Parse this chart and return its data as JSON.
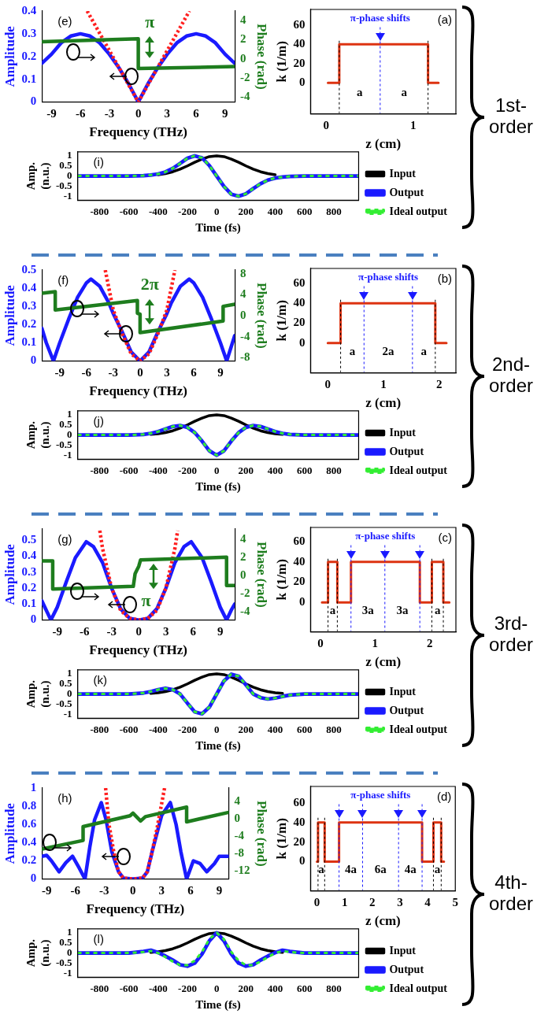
{
  "chart_data": [
    {
      "type": "line",
      "title": "(e)",
      "xlabel": "Frequency (THz)",
      "ylabel": "Amplitude",
      "y2label": "Phase (rad)",
      "xlim": [
        -10,
        10
      ],
      "xticks": [
        -9,
        -6,
        -3,
        0,
        3,
        6,
        9
      ],
      "ylim": [
        0,
        0.4
      ],
      "yticks": [
        0,
        0.1,
        0.2,
        0.3,
        0.4
      ],
      "y2lim": [
        -4.5,
        5
      ],
      "y2ticks": [
        -4,
        -2,
        0,
        2,
        4
      ],
      "annotations": [
        "π"
      ],
      "series": [
        {
          "color": "#1a1aff",
          "x": [
            -10,
            -9,
            -8,
            -7,
            -6,
            -5,
            -4,
            -3,
            -2,
            -1,
            0,
            1,
            2,
            3,
            4,
            5,
            6,
            7,
            8,
            9,
            10
          ],
          "values": [
            0.17,
            0.21,
            0.26,
            0.29,
            0.3,
            0.29,
            0.26,
            0.21,
            0.15,
            0.08,
            0,
            0.08,
            0.15,
            0.21,
            0.26,
            0.29,
            0.3,
            0.29,
            0.26,
            0.21,
            0.17
          ]
        },
        {
          "color": "#ff2020",
          "line_style": "dotted",
          "x": [
            -5.3,
            0,
            5.3
          ],
          "values": [
            0.4,
            0,
            0.4
          ]
        },
        {
          "color": "#1e7d1e",
          "axis": "y2",
          "x": [
            -10,
            0,
            0,
            10
          ],
          "values": [
            1.8,
            2.1,
            -1.0,
            -0.8
          ]
        }
      ]
    },
    {
      "type": "line",
      "title": "(a)",
      "xlabel": "z (cm)",
      "ylabel": "k (1/m)",
      "xlim": [
        -0.18,
        1.49
      ],
      "xticks": [
        0,
        1
      ],
      "ylim": [
        -32,
        76
      ],
      "yticks": [
        0,
        20,
        40,
        60
      ],
      "annotations": [
        "π-phase shifts",
        "a",
        "a",
        "1st-order"
      ],
      "ref_lines": [
        {
          "axis": "x",
          "value": 0.15,
          "line_style": "dotted"
        },
        {
          "axis": "x",
          "value": 0.62,
          "color": "#1a1aff",
          "line_style": "dotted"
        },
        {
          "axis": "x",
          "value": 1.17,
          "line_style": "dotted"
        }
      ],
      "series": [
        {
          "color": "#dd3311",
          "x": [
            0.02,
            0.15,
            0.15,
            1.17,
            1.17,
            1.29
          ],
          "values": [
            0,
            0,
            40,
            40,
            0,
            0
          ]
        }
      ]
    },
    {
      "type": "line",
      "title": "(i)",
      "xlabel": "Time (fs)",
      "ylabel": "Amp. (n.u.)",
      "xlim": [
        -950,
        970
      ],
      "xticks": [
        -800,
        -600,
        -400,
        -200,
        0,
        200,
        400,
        600,
        800
      ],
      "ylim": [
        -1.2,
        1.2
      ],
      "yticks": [
        -1,
        -0.5,
        0,
        0.5,
        1
      ],
      "legend": "right",
      "x": [
        -950,
        -600,
        -500,
        -450,
        -400,
        -350,
        -300,
        -250,
        -200,
        -150,
        -100,
        -50,
        0,
        50,
        100,
        150,
        200,
        250,
        300,
        350,
        400,
        450,
        500,
        600,
        970
      ],
      "series": [
        {
          "name": "Input",
          "color": "#000000",
          "values": [
            null,
            null,
            null,
            null,
            0.06,
            0.12,
            0.21,
            0.34,
            0.5,
            0.68,
            0.84,
            0.96,
            1,
            0.96,
            0.84,
            0.68,
            0.5,
            0.34,
            0.21,
            0.12,
            0.06,
            null,
            null,
            null,
            null
          ]
        },
        {
          "name": "Output",
          "color": "#1a1aff",
          "values": [
            0,
            0,
            0.02,
            0.05,
            0.1,
            0.2,
            0.38,
            0.62,
            0.88,
            1,
            0.9,
            0.52,
            0,
            -0.52,
            -0.9,
            -1,
            -0.88,
            -0.62,
            -0.38,
            -0.2,
            -0.1,
            -0.05,
            -0.02,
            0,
            0
          ]
        },
        {
          "name": "Ideal output",
          "color": "#33ee33",
          "line_style": "dashed",
          "values": [
            0,
            0,
            0.02,
            0.05,
            0.1,
            0.2,
            0.38,
            0.62,
            0.88,
            1,
            0.9,
            0.52,
            0,
            -0.52,
            -0.9,
            -1,
            -0.88,
            -0.62,
            -0.38,
            -0.2,
            -0.1,
            -0.05,
            -0.02,
            0,
            0
          ]
        }
      ]
    },
    {
      "type": "line",
      "title": "(f)",
      "xlabel": "Frequency (THz)",
      "ylabel": "Amplitude",
      "y2label": "Phase (rad)",
      "xlim": [
        -11,
        10.6
      ],
      "xticks": [
        -9,
        -6,
        -3,
        0,
        3,
        6,
        9
      ],
      "ylim": [
        0,
        0.5
      ],
      "yticks": [
        0,
        0.1,
        0.2,
        0.3,
        0.4,
        0.5
      ],
      "y2lim": [
        -8.6,
        8.7
      ],
      "y2ticks": [
        -8,
        -4,
        0,
        4,
        8
      ],
      "annotations": [
        "2π"
      ],
      "series": [
        {
          "color": "#1a1aff",
          "x": [
            -11,
            -10.5,
            -9.7,
            -9,
            -8,
            -7,
            -6,
            -5.5,
            -4.5,
            -3.5,
            -3,
            -2,
            -1,
            0,
            1,
            2,
            3,
            3.5,
            4.5,
            5.5,
            6,
            7,
            8,
            9,
            9.7,
            10.6
          ],
          "values": [
            0.18,
            0.1,
            0,
            0.1,
            0.23,
            0.35,
            0.43,
            0.45,
            0.41,
            0.32,
            0.26,
            0.16,
            0.05,
            0,
            0.05,
            0.16,
            0.26,
            0.32,
            0.41,
            0.45,
            0.43,
            0.35,
            0.23,
            0.1,
            0,
            0.14
          ]
        },
        {
          "color": "#ff2020",
          "line_style": "dotted",
          "x": [
            -3.9,
            -3,
            -2,
            -1,
            0,
            1,
            2,
            3,
            3.9
          ],
          "values": [
            0.5,
            0.28,
            0.15,
            0.04,
            0,
            0.04,
            0.15,
            0.28,
            0.5
          ]
        },
        {
          "color": "#1e7d1e",
          "axis": "y2",
          "x": [
            -11,
            -9.5,
            -9.5,
            -0.3,
            -0.3,
            0,
            0,
            9.3,
            9.3,
            10.6
          ],
          "values": [
            4.3,
            4.6,
            1.1,
            2.9,
            0.5,
            0.3,
            -3.2,
            -1.0,
            1.8,
            2.2
          ]
        }
      ]
    },
    {
      "type": "line",
      "title": "(b)",
      "xlabel": "z (cm)",
      "ylabel": "k (1/m)",
      "xlim": [
        -0.31,
        2.3
      ],
      "xticks": [
        0,
        1,
        2
      ],
      "ylim": [
        -30,
        75
      ],
      "yticks": [
        0,
        20,
        40,
        60
      ],
      "annotations": [
        "π-phase shifts",
        "a",
        "2a",
        "a",
        "2nd-order"
      ],
      "ref_lines": [
        {
          "axis": "x",
          "value": 0.23,
          "line_style": "dotted"
        },
        {
          "axis": "x",
          "value": 0.65,
          "color": "#1a1aff",
          "line_style": "dotted"
        },
        {
          "axis": "x",
          "value": 1.52,
          "color": "#1a1aff",
          "line_style": "dotted"
        },
        {
          "axis": "x",
          "value": 1.93,
          "line_style": "dotted"
        }
      ],
      "series": [
        {
          "color": "#dd3311",
          "x": [
            0,
            0.23,
            0.23,
            1.93,
            1.93,
            2.13
          ],
          "values": [
            0,
            0,
            40,
            40,
            0,
            0
          ]
        }
      ]
    },
    {
      "type": "line",
      "title": "(j)",
      "xlabel": "Time (fs)",
      "ylabel": "Amp. (n.u.)",
      "xlim": [
        -950,
        970
      ],
      "xticks": [
        -800,
        -600,
        -400,
        -200,
        0,
        200,
        400,
        600,
        800
      ],
      "ylim": [
        -1.2,
        1.2
      ],
      "yticks": [
        -1,
        -0.5,
        0,
        0.5,
        1
      ],
      "legend": "right",
      "x": [
        -950,
        -600,
        -500,
        -450,
        -400,
        -350,
        -300,
        -250,
        -200,
        -150,
        -100,
        -50,
        0,
        50,
        100,
        150,
        200,
        250,
        300,
        350,
        400,
        450,
        500,
        600,
        970
      ],
      "series": [
        {
          "name": "Input",
          "color": "#000000",
          "values": [
            null,
            null,
            null,
            0.03,
            0.06,
            0.12,
            0.21,
            0.34,
            0.5,
            0.68,
            0.84,
            0.96,
            1,
            0.96,
            0.84,
            0.68,
            0.5,
            0.34,
            0.21,
            0.12,
            0.06,
            0.03,
            null,
            null,
            null
          ]
        },
        {
          "name": "Output",
          "color": "#1a1aff",
          "values": [
            0,
            0,
            0.03,
            0.08,
            0.17,
            0.3,
            0.42,
            0.47,
            0.38,
            0.12,
            -0.3,
            -0.78,
            -1,
            -0.78,
            -0.3,
            0.12,
            0.38,
            0.47,
            0.42,
            0.3,
            0.17,
            0.08,
            0.03,
            0,
            0
          ]
        },
        {
          "name": "Ideal output",
          "color": "#33ee33",
          "line_style": "dashed",
          "values": [
            0,
            0,
            0.03,
            0.08,
            0.17,
            0.3,
            0.42,
            0.47,
            0.38,
            0.12,
            -0.3,
            -0.78,
            -1,
            -0.78,
            -0.3,
            0.12,
            0.38,
            0.47,
            0.42,
            0.3,
            0.17,
            0.08,
            0.03,
            0,
            0
          ]
        }
      ]
    },
    {
      "type": "line",
      "title": "(g)",
      "xlabel": "Frequency (THz)",
      "ylabel": "Amplitude",
      "y2label": "Phase (rad)",
      "xlim": [
        -10.7,
        10.6
      ],
      "xticks": [
        -9,
        -6,
        -3,
        0,
        3,
        6,
        9
      ],
      "ylim": [
        0,
        0.57
      ],
      "yticks": [
        0,
        0.1,
        0.2,
        0.3,
        0.4,
        0.5
      ],
      "y2lim": [
        -4.9,
        5.1
      ],
      "y2ticks": [
        -4,
        -2,
        0,
        2,
        4
      ],
      "annotations": [
        "π"
      ],
      "series": [
        {
          "color": "#1a1aff",
          "x": [
            -10.7,
            -10.2,
            -9.7,
            -9,
            -8,
            -7,
            -5.8,
            -5,
            -4,
            -3,
            -2,
            -1,
            0,
            1,
            2,
            3,
            4,
            5,
            5.8,
            7,
            8,
            9,
            9.7,
            10.2,
            10.6
          ],
          "values": [
            0.12,
            0.06,
            0,
            0.08,
            0.24,
            0.39,
            0.49,
            0.46,
            0.36,
            0.2,
            0.07,
            0.01,
            0,
            0.01,
            0.07,
            0.2,
            0.36,
            0.46,
            0.49,
            0.39,
            0.24,
            0.08,
            0,
            0.06,
            0.1
          ]
        },
        {
          "color": "#ff2020",
          "line_style": "dotted",
          "x": [
            -4.3,
            -4,
            -3,
            -2,
            -1,
            0,
            1,
            2,
            3,
            4,
            4.3
          ],
          "values": [
            0.56,
            0.45,
            0.2,
            0.06,
            0.01,
            0,
            0.01,
            0.06,
            0.2,
            0.45,
            0.56
          ]
        },
        {
          "color": "#1e7d1e",
          "axis": "y2",
          "x": [
            -10.7,
            -9.5,
            -9.5,
            -0.6,
            -0.4,
            -0.2,
            0,
            0.2,
            9.7,
            9.7,
            10.6
          ],
          "values": [
            1.6,
            1.6,
            -1.5,
            -1.2,
            0.2,
            0.6,
            1.0,
            1.7,
            2.0,
            -1.1,
            -1.1
          ]
        }
      ]
    },
    {
      "type": "line",
      "title": "(c)",
      "xlabel": "z (cm)",
      "ylabel": "k (1/m)",
      "xlim": [
        -0.18,
        2.48
      ],
      "xticks": [
        0,
        1,
        2
      ],
      "ylim": [
        -29,
        74
      ],
      "yticks": [
        0,
        20,
        40,
        60
      ],
      "annotations": [
        "π-phase shifts",
        "a",
        "3a",
        "3a",
        "a",
        "3rd-order"
      ],
      "ref_lines": [
        {
          "axis": "x",
          "value": 0.14,
          "line_style": "dotted"
        },
        {
          "axis": "x",
          "value": 0.31,
          "line_style": "dotted"
        },
        {
          "axis": "x",
          "value": 0.56,
          "color": "#1a1aff",
          "line_style": "dotted"
        },
        {
          "axis": "x",
          "value": 1.18,
          "color": "#1a1aff",
          "line_style": "dotted"
        },
        {
          "axis": "x",
          "value": 1.82,
          "color": "#1a1aff",
          "line_style": "dotted"
        },
        {
          "axis": "x",
          "value": 2.04,
          "line_style": "dotted"
        },
        {
          "axis": "x",
          "value": 2.25,
          "line_style": "dotted"
        }
      ],
      "series": [
        {
          "color": "#dd3311",
          "x": [
            0.03,
            0.14,
            0.14,
            0.31,
            0.31,
            0.56,
            0.56,
            1.82,
            1.82,
            2.04,
            2.04,
            2.25,
            2.25,
            2.36
          ],
          "values": [
            0,
            0,
            40,
            40,
            0,
            0,
            40,
            40,
            0,
            0,
            40,
            40,
            0,
            0
          ]
        }
      ]
    },
    {
      "type": "line",
      "title": "(k)",
      "xlabel": "Time (fs)",
      "ylabel": "Amp. (n.u.)",
      "xlim": [
        -950,
        970
      ],
      "xticks": [
        -800,
        -600,
        -400,
        -200,
        0,
        200,
        400,
        600,
        800
      ],
      "ylim": [
        -1.2,
        1.2
      ],
      "yticks": [
        -1,
        -0.5,
        0,
        0.5,
        1
      ],
      "legend": "right",
      "x": [
        -950,
        -600,
        -500,
        -450,
        -400,
        -350,
        -300,
        -250,
        -200,
        -150,
        -100,
        -50,
        0,
        50,
        100,
        150,
        200,
        250,
        300,
        350,
        400,
        450,
        500,
        600,
        970
      ],
      "series": [
        {
          "name": "Input",
          "color": "#000000",
          "values": [
            null,
            null,
            null,
            0.03,
            0.06,
            0.12,
            0.21,
            0.34,
            0.5,
            0.68,
            0.84,
            0.96,
            1,
            0.96,
            0.84,
            0.68,
            0.5,
            0.34,
            0.21,
            0.12,
            0.06,
            0.03,
            null,
            null,
            null
          ]
        },
        {
          "name": "Output",
          "color": "#1a1aff",
          "values": [
            0,
            0,
            0.05,
            0.12,
            0.22,
            0.28,
            0.22,
            0,
            -0.45,
            -0.88,
            -0.98,
            -0.65,
            0,
            0.65,
            0.98,
            0.88,
            0.45,
            0,
            -0.18,
            -0.25,
            -0.2,
            -0.12,
            -0.05,
            0,
            0
          ]
        },
        {
          "name": "Ideal output",
          "color": "#33ee33",
          "line_style": "dashed",
          "values": [
            0,
            0,
            0.05,
            0.12,
            0.22,
            0.28,
            0.22,
            0,
            -0.45,
            -0.88,
            -0.98,
            -0.65,
            0,
            0.65,
            0.98,
            0.88,
            0.45,
            0,
            -0.18,
            -0.25,
            -0.2,
            -0.12,
            -0.05,
            0,
            0
          ]
        }
      ]
    },
    {
      "type": "line",
      "title": "(h)",
      "xlabel": "Frequency (THz)",
      "ylabel": "Amplitude",
      "y2label": "Phase (rad)",
      "xlim": [
        -9.5,
        10
      ],
      "xticks": [
        -9,
        -6,
        -3,
        0,
        3,
        6,
        9
      ],
      "ylim": [
        0,
        1
      ],
      "yticks": [
        0,
        0.2,
        0.4,
        0.6,
        0.8,
        1
      ],
      "y2lim": [
        -13.9,
        7.1
      ],
      "y2ticks": [
        -12,
        -8,
        -4,
        0,
        4
      ],
      "series": [
        {
          "color": "#1a1aff",
          "x": [
            -9.5,
            -9,
            -8.5,
            -7.7,
            -7,
            -6.3,
            -5.6,
            -5,
            -4.5,
            -4,
            -3.3,
            -2.8,
            -2.2,
            -1.5,
            -1,
            0,
            1,
            1.5,
            2,
            2.5,
            3,
            3.9,
            4.5,
            5,
            5.6,
            6.3,
            7,
            7.7,
            8.5,
            9,
            10
          ],
          "values": [
            0.25,
            0.26,
            0.2,
            0.08,
            0.18,
            0.25,
            0.12,
            0,
            0.35,
            0.65,
            0.84,
            0.65,
            0.3,
            0.08,
            0.01,
            0,
            0.01,
            0.08,
            0.3,
            0.5,
            0.7,
            0.84,
            0.6,
            0.3,
            0,
            0.2,
            0.17,
            0.08,
            0.17,
            0.25,
            0.25
          ]
        },
        {
          "color": "#ff2020",
          "line_style": "dotted",
          "x": [
            -2.85,
            -2.5,
            -2,
            -1.5,
            -1,
            0,
            1,
            1.5,
            2,
            2.5,
            3.3
          ],
          "values": [
            1,
            0.6,
            0.3,
            0.08,
            0.01,
            0,
            0.01,
            0.08,
            0.3,
            0.55,
            1
          ]
        },
        {
          "color": "#1e7d1e",
          "axis": "y2",
          "x": [
            -9.5,
            -5.2,
            -5.2,
            -0.3,
            0,
            0.8,
            1.3,
            5.6,
            5.6,
            10
          ],
          "values": [
            -7,
            -5,
            -1.8,
            0.7,
            1.3,
            -0.5,
            0.5,
            2.7,
            -0.7,
            1.5
          ]
        }
      ]
    },
    {
      "type": "line",
      "title": "(d)",
      "xlabel": "z (cm)",
      "ylabel": "k (1/m)",
      "xlim": [
        -0.23,
        5
      ],
      "xticks": [
        0,
        1,
        2,
        3,
        4,
        5
      ],
      "ylim": [
        -30,
        77
      ],
      "yticks": [
        0,
        20,
        40,
        60
      ],
      "annotations": [
        "π-phase shifts",
        "a",
        "4a",
        "6a",
        "4a",
        "a",
        "4th-order"
      ],
      "ref_lines": [
        {
          "axis": "x",
          "value": 0.04,
          "line_style": "dotted"
        },
        {
          "axis": "x",
          "value": 0.28,
          "line_style": "dotted"
        },
        {
          "axis": "x",
          "value": 0.8,
          "color": "#1a1aff",
          "line_style": "dotted"
        },
        {
          "axis": "x",
          "value": 1.65,
          "color": "#1a1aff",
          "line_style": "dotted"
        },
        {
          "axis": "x",
          "value": 2.95,
          "color": "#1a1aff",
          "line_style": "dotted"
        },
        {
          "axis": "x",
          "value": 3.8,
          "color": "#1a1aff",
          "line_style": "dotted"
        },
        {
          "axis": "x",
          "value": 4.21,
          "line_style": "dotted"
        },
        {
          "axis": "x",
          "value": 4.49,
          "line_style": "dotted"
        }
      ],
      "series": [
        {
          "color": "#dd3311",
          "x": [
            0,
            0.04,
            0.04,
            0.28,
            0.28,
            0.8,
            0.8,
            3.8,
            3.8,
            4.21,
            4.21,
            4.49,
            4.49,
            4.59
          ],
          "values": [
            0,
            0,
            40,
            40,
            0,
            0,
            40,
            40,
            0,
            0,
            40,
            40,
            0,
            0
          ]
        }
      ]
    },
    {
      "type": "line",
      "title": "(l)",
      "xlabel": "Time (fs)",
      "ylabel": "Amp. (n.u.)",
      "xlim": [
        -950,
        970
      ],
      "xticks": [
        -800,
        -600,
        -400,
        -200,
        0,
        200,
        400,
        600,
        800
      ],
      "ylim": [
        -1.2,
        1.2
      ],
      "yticks": [
        -1,
        -0.5,
        0,
        0.5,
        1
      ],
      "legend": "right",
      "x": [
        -950,
        -600,
        -500,
        -450,
        -400,
        -350,
        -300,
        -250,
        -200,
        -150,
        -100,
        -50,
        0,
        50,
        100,
        150,
        200,
        250,
        300,
        350,
        400,
        450,
        500,
        600,
        970
      ],
      "series": [
        {
          "name": "Input",
          "color": "#000000",
          "values": [
            null,
            null,
            null,
            0.03,
            0.06,
            0.12,
            0.21,
            0.34,
            0.5,
            0.68,
            0.84,
            0.96,
            1,
            0.96,
            0.84,
            0.68,
            0.5,
            0.34,
            0.21,
            0.12,
            0.06,
            0.03,
            null,
            null,
            null
          ]
        },
        {
          "name": "Output",
          "color": "#1a1aff",
          "values": [
            0,
            0,
            0.08,
            0.14,
            0.02,
            -0.15,
            -0.35,
            -0.58,
            -0.65,
            -0.5,
            -0.05,
            0.6,
            1,
            0.6,
            -0.05,
            -0.5,
            -0.65,
            -0.58,
            -0.35,
            -0.15,
            0.02,
            0.14,
            0.08,
            0,
            0
          ]
        },
        {
          "name": "Ideal output",
          "color": "#33ee33",
          "line_style": "dashed",
          "values": [
            0,
            0,
            0.05,
            0.1,
            0,
            -0.2,
            -0.42,
            -0.6,
            -0.6,
            -0.38,
            0.05,
            0.68,
            1,
            0.68,
            0.05,
            -0.38,
            -0.6,
            -0.6,
            -0.42,
            -0.2,
            0,
            0.1,
            0.05,
            0,
            0
          ]
        }
      ]
    }
  ]
}
